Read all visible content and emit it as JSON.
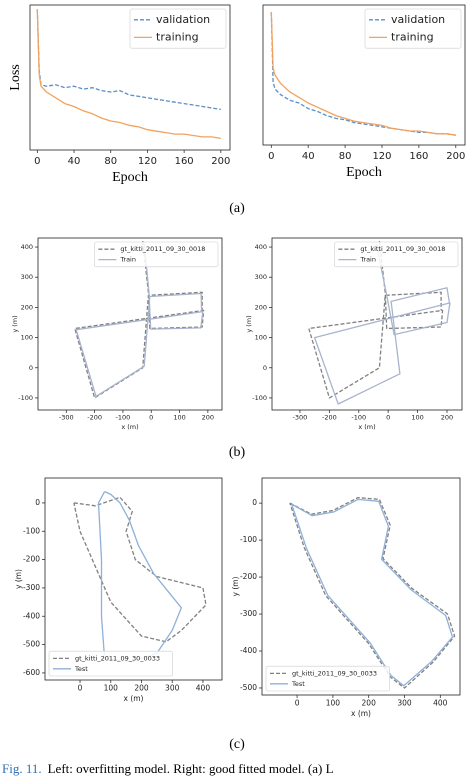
{
  "chart_data": [
    {
      "type": "line",
      "x_label": "Epoch",
      "y_label": "Loss",
      "xlim": [
        -8,
        210
      ],
      "ylim": [
        0,
        1
      ],
      "xticks": [
        0,
        40,
        80,
        120,
        160,
        200
      ],
      "legend": "upper right",
      "series": [
        {
          "name": "validation",
          "color": "#5b8fc8",
          "dashed": true,
          "x": [
            0,
            2,
            4,
            10,
            20,
            30,
            40,
            50,
            60,
            70,
            80,
            90,
            100,
            110,
            120,
            130,
            140,
            150,
            160,
            170,
            180,
            190,
            200
          ],
          "values": [
            0.97,
            0.55,
            0.45,
            0.44,
            0.45,
            0.43,
            0.44,
            0.42,
            0.43,
            0.41,
            0.4,
            0.41,
            0.38,
            0.37,
            0.36,
            0.35,
            0.34,
            0.33,
            0.32,
            0.31,
            0.3,
            0.29,
            0.28
          ]
        },
        {
          "name": "training",
          "color": "#f2a25e",
          "dashed": false,
          "x": [
            0,
            2,
            4,
            10,
            20,
            30,
            40,
            50,
            60,
            70,
            80,
            90,
            100,
            110,
            120,
            130,
            140,
            150,
            160,
            170,
            180,
            190,
            200
          ],
          "values": [
            0.97,
            0.52,
            0.44,
            0.4,
            0.36,
            0.32,
            0.3,
            0.27,
            0.25,
            0.22,
            0.2,
            0.19,
            0.17,
            0.16,
            0.14,
            0.13,
            0.12,
            0.11,
            0.11,
            0.1,
            0.09,
            0.09,
            0.08
          ]
        }
      ]
    },
    {
      "type": "line",
      "x_label": "Epoch",
      "xlim": [
        -9,
        210
      ],
      "ylim": [
        0,
        1
      ],
      "xticks": [
        0,
        40,
        80,
        120,
        160,
        200
      ],
      "legend": "upper right",
      "series": [
        {
          "name": "validation",
          "color": "#5b8fc8",
          "dashed": true,
          "x": [
            0,
            2,
            4,
            10,
            20,
            30,
            40,
            50,
            60,
            70,
            80,
            90,
            100,
            110,
            120,
            130,
            140,
            150,
            160,
            170,
            180,
            190,
            200
          ],
          "values": [
            0.95,
            0.45,
            0.4,
            0.36,
            0.32,
            0.3,
            0.26,
            0.24,
            0.21,
            0.19,
            0.18,
            0.16,
            0.15,
            0.14,
            0.13,
            0.12,
            0.11,
            0.1,
            0.09,
            0.09,
            0.08,
            0.08,
            0.07
          ]
        },
        {
          "name": "training",
          "color": "#f2a25e",
          "dashed": false,
          "x": [
            0,
            2,
            4,
            10,
            20,
            30,
            40,
            50,
            60,
            70,
            80,
            90,
            100,
            110,
            120,
            130,
            140,
            150,
            160,
            170,
            180,
            190,
            200
          ],
          "values": [
            0.95,
            0.55,
            0.5,
            0.44,
            0.38,
            0.34,
            0.3,
            0.27,
            0.24,
            0.21,
            0.19,
            0.17,
            0.16,
            0.15,
            0.14,
            0.12,
            0.11,
            0.1,
            0.1,
            0.09,
            0.08,
            0.08,
            0.07
          ]
        }
      ]
    },
    {
      "type": "line",
      "x_label": "x (m)",
      "y_label": "y (m)",
      "xlim": [
        -400,
        250
      ],
      "ylim": [
        -140,
        430
      ],
      "xticks": [
        -300,
        -200,
        -100,
        0,
        100,
        200
      ],
      "yticks": [
        -100,
        0,
        100,
        200,
        300,
        400
      ],
      "legend": "upper right",
      "series": [
        {
          "name": "gt_kitti_2011_09_30_0018",
          "color": "#808080",
          "dashed": true,
          "x": [
            -30,
            -10,
            -5,
            180,
            185,
            -270,
            -200,
            -30,
            -10,
            180,
            180
          ],
          "values": [
            420,
            250,
            130,
            135,
            190,
            130,
            -100,
            0,
            240,
            250,
            190
          ]
        },
        {
          "name": "Train",
          "color": "#a8b4cc",
          "dashed": false,
          "x": [
            -25,
            -8,
            -2,
            175,
            182,
            -265,
            -195,
            -25,
            -5,
            176,
            178
          ],
          "values": [
            415,
            248,
            128,
            132,
            186,
            126,
            -95,
            5,
            236,
            246,
            186
          ]
        }
      ]
    },
    {
      "type": "line",
      "x_label": "x (m)",
      "y_label": "y (m)",
      "xlim": [
        -395,
        251
      ],
      "ylim": [
        -140,
        430
      ],
      "xticks": [
        -300,
        -200,
        -100,
        0,
        100,
        200
      ],
      "yticks": [
        -100,
        0,
        100,
        200,
        300,
        400
      ],
      "legend": "upper right",
      "series": [
        {
          "name": "gt_kitti_2011_09_30_0018",
          "color": "#808080",
          "dashed": true,
          "x": [
            -30,
            -10,
            -5,
            180,
            185,
            -270,
            -200,
            -30,
            -10,
            180,
            180
          ],
          "values": [
            420,
            250,
            130,
            135,
            190,
            130,
            -100,
            0,
            240,
            250,
            190
          ]
        },
        {
          "name": "Train",
          "color": "#a8b4cc",
          "dashed": false,
          "x": [
            -40,
            -5,
            20,
            200,
            210,
            -250,
            -170,
            40,
            10,
            200,
            210
          ],
          "values": [
            410,
            240,
            110,
            150,
            215,
            100,
            -120,
            -20,
            220,
            265,
            205
          ]
        }
      ]
    },
    {
      "type": "line",
      "x_label": "x (m)",
      "y_label": "y (m)",
      "xlim": [
        -114,
        462
      ],
      "ylim": [
        -625,
        88
      ],
      "xticks": [
        0,
        100,
        200,
        300,
        400
      ],
      "yticks": [
        0,
        -100,
        -200,
        -300,
        -400,
        -500,
        -600
      ],
      "legend": "lower left",
      "series": [
        {
          "name": "gt_kitti_2011_09_30_0033",
          "color": "#808080",
          "dashed": true,
          "x": [
            -20,
            50,
            130,
            170,
            150,
            180,
            250,
            400,
            410,
            330,
            280,
            200,
            100,
            0,
            -20
          ],
          "values": [
            0,
            -10,
            20,
            -30,
            -100,
            -200,
            -260,
            -300,
            -360,
            -450,
            -490,
            -470,
            -350,
            -100,
            0
          ]
        },
        {
          "name": "Test",
          "color": "#8fb0d8",
          "dashed": false,
          "x": [
            80,
            100,
            130,
            160,
            190,
            240,
            330,
            300,
            250,
            170,
            80,
            70,
            70,
            60,
            80
          ],
          "values": [
            40,
            30,
            0,
            -60,
            -150,
            -250,
            -370,
            -450,
            -530,
            -560,
            -550,
            -400,
            -200,
            0,
            40
          ]
        }
      ]
    },
    {
      "type": "line",
      "x_label": "x (m)",
      "y_label": "y (m)",
      "xlim": [
        -98,
        455
      ],
      "ylim": [
        -519,
        68
      ],
      "xticks": [
        0,
        100,
        200,
        300,
        400
      ],
      "yticks": [
        0,
        -100,
        -200,
        -300,
        -400,
        -500
      ],
      "legend": "lower left",
      "series": [
        {
          "name": "gt_kitti_2011_09_30_0033",
          "color": "#808080",
          "dashed": true,
          "x": [
            -20,
            40,
            100,
            170,
            230,
            260,
            240,
            320,
            420,
            440,
            380,
            300,
            260,
            200,
            80,
            20,
            -20
          ],
          "values": [
            0,
            -30,
            -20,
            15,
            10,
            -60,
            -150,
            -230,
            -300,
            -360,
            -430,
            -500,
            -470,
            -380,
            -250,
            -120,
            0
          ]
        },
        {
          "name": "Test",
          "color": "#8fb0d8",
          "dashed": false,
          "x": [
            -15,
            42,
            102,
            170,
            228,
            255,
            236,
            318,
            415,
            434,
            376,
            298,
            262,
            204,
            86,
            26,
            -15
          ],
          "values": [
            -3,
            -34,
            -24,
            10,
            5,
            -62,
            -152,
            -234,
            -304,
            -362,
            -428,
            -494,
            -466,
            -378,
            -250,
            -122,
            -3
          ]
        }
      ]
    }
  ],
  "captions": [
    "(a)",
    "(b)",
    "(c)"
  ],
  "figure_caption": {
    "label": "Fig. 11.",
    "text": "Left: overfitting model. Right: good fitted model. (a) L"
  }
}
